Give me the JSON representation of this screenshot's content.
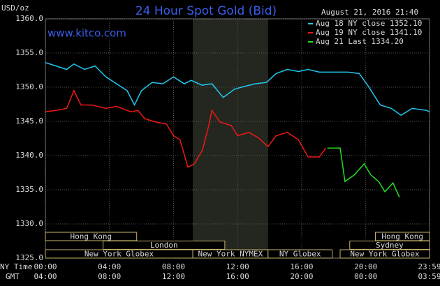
{
  "chart_data": {
    "type": "line",
    "title": "24 Hour Spot Gold (Bid)",
    "unit_label": "USD/oz",
    "site": "www.kitco.com",
    "timestamp": "August 21, 2016 21:40",
    "x_row_labels": [
      "NY Time",
      "GMT"
    ],
    "xlim": [
      0,
      23.98
    ],
    "xticks": [
      {
        "value": 0,
        "label": "00:00"
      },
      {
        "value": 4,
        "label": "04:00"
      },
      {
        "value": 8,
        "label": "08:00"
      },
      {
        "value": 12,
        "label": "12:00"
      },
      {
        "value": 16,
        "label": "16:00"
      },
      {
        "value": 20,
        "label": "20:00"
      },
      {
        "value": 23.98,
        "label": "23:59"
      }
    ],
    "gmt_labels": [
      "04:00",
      "08:00",
      "12:00",
      "16:00",
      "20:00",
      "00:00",
      "03:59"
    ],
    "ylim": [
      1325,
      1360
    ],
    "yticks": [
      {
        "value": 1325,
        "label": "1325.0"
      },
      {
        "value": 1330,
        "label": "1330.0"
      },
      {
        "value": 1335,
        "label": "1335.0"
      },
      {
        "value": 1340,
        "label": "1340.0"
      },
      {
        "value": 1345,
        "label": "1345.0"
      },
      {
        "value": 1350,
        "label": "1350.0"
      },
      {
        "value": 1355,
        "label": "1355.0"
      },
      {
        "value": 1360,
        "label": "1360.0"
      }
    ],
    "grid": true,
    "series": [
      {
        "name": "Aug 18 NY close 1352.10",
        "color": "#22c8f0",
        "x": [
          0,
          0.67,
          1.33,
          1.78,
          2.44,
          3.1,
          3.78,
          4.44,
          5.1,
          5.56,
          6,
          6.67,
          7.33,
          8,
          8.67,
          9.1,
          9.78,
          10.4,
          11.1,
          11.8,
          12.4,
          13.1,
          13.8,
          14.4,
          15.1,
          15.8,
          16.4,
          17.1,
          17.8,
          18.9,
          19.6,
          20.2,
          20.9,
          21.6,
          22.2,
          22.9,
          23.8,
          23.98
        ],
        "values": [
          1353.6,
          1353.1,
          1352.6,
          1353.4,
          1352.6,
          1353.1,
          1351.5,
          1350.5,
          1349.5,
          1347.4,
          1349.5,
          1350.7,
          1350.5,
          1351.5,
          1350.5,
          1351.0,
          1350.3,
          1350.5,
          1348.5,
          1349.7,
          1350.1,
          1350.5,
          1350.7,
          1352.0,
          1352.6,
          1352.3,
          1352.6,
          1352.2,
          1352.2,
          1352.2,
          1352.0,
          1350.0,
          1347.4,
          1346.9,
          1345.9,
          1346.9,
          1346.6,
          1346.4
        ]
      },
      {
        "name": "Aug 19 NY close 1341.10",
        "color": "#f01818",
        "x": [
          0,
          0.67,
          1.33,
          1.78,
          2.22,
          2.9,
          3.78,
          4.44,
          5.33,
          5.78,
          6.2,
          6.9,
          7.56,
          8,
          8.4,
          8.9,
          9.3,
          9.8,
          10.2,
          10.4,
          10.9,
          11.6,
          12,
          12.7,
          13.3,
          13.9,
          14.4,
          15.1,
          15.8,
          16.4,
          17.1,
          17.5
        ],
        "values": [
          1346.4,
          1346.6,
          1346.9,
          1349.5,
          1347.4,
          1347.4,
          1346.9,
          1347.2,
          1346.4,
          1346.6,
          1345.4,
          1344.9,
          1344.6,
          1342.9,
          1342.3,
          1338.3,
          1338.8,
          1340.8,
          1344.4,
          1346.6,
          1344.9,
          1344.4,
          1342.9,
          1343.4,
          1342.6,
          1341.3,
          1342.9,
          1343.4,
          1342.3,
          1339.8,
          1339.8,
          1341.1
        ]
      },
      {
        "name": "Aug 21 Last 1334.20",
        "color": "#22e022",
        "x": [
          17.6,
          18.4,
          18.7,
          19.3,
          19.9,
          20.3,
          20.8,
          21.2,
          21.7,
          22.1
        ],
        "values": [
          1341.1,
          1341.1,
          1336.2,
          1337.2,
          1338.8,
          1337.2,
          1336.2,
          1334.7,
          1336.0,
          1333.9
        ]
      }
    ],
    "sessions": [
      {
        "label": "Hong Kong",
        "start": 0,
        "end": 5.7
      },
      {
        "label": "Hong Kong",
        "start": 20.6,
        "end": 23.98
      },
      {
        "label": "London",
        "start": 3.6,
        "end": 11.2
      },
      {
        "label": "Sydney",
        "start": 19.0,
        "end": 23.98
      },
      {
        "label": "New York Globex",
        "start": 0,
        "end": 9.2
      },
      {
        "label": "New York NYMEX",
        "start": 9.2,
        "end": 13.9
      },
      {
        "label": "NY Globex",
        "start": 13.9,
        "end": 17.9
      },
      {
        "label": "New York Globex",
        "start": 18.4,
        "end": 23.98
      }
    ]
  }
}
